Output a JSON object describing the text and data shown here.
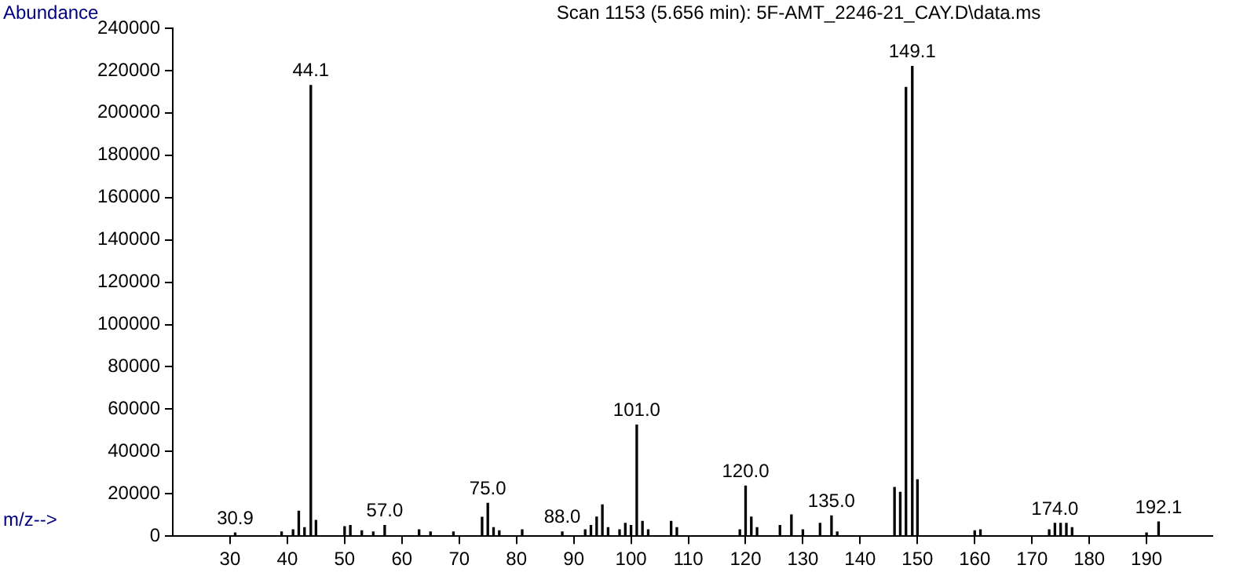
{
  "chart_data": {
    "type": "bar",
    "title": "Scan 1153 (5.656 min): 5F-AMT_2246-21_CAY.D\\data.ms",
    "xlabel": "m/z-->",
    "ylabel": "Abundance",
    "x": [
      30.9,
      39,
      41,
      42,
      43,
      44.1,
      45,
      50,
      51,
      53,
      55,
      57,
      63,
      65,
      69,
      74,
      75,
      76,
      77,
      81,
      88,
      92,
      93,
      94,
      95,
      96,
      98,
      99,
      100,
      101,
      102,
      103,
      107,
      108,
      119,
      120,
      121,
      122,
      126,
      128,
      130,
      133,
      135,
      136,
      146,
      147,
      148,
      149.1,
      150,
      160,
      161,
      173,
      174,
      175,
      176,
      177,
      190,
      192.1
    ],
    "values": [
      1500,
      2000,
      3000,
      11800,
      4000,
      213000,
      7400,
      4500,
      5000,
      2500,
      2000,
      5000,
      3000,
      2000,
      2000,
      8900,
      15500,
      4000,
      2500,
      3000,
      2000,
      3000,
      5000,
      9000,
      14800,
      4000,
      3000,
      6000,
      5000,
      52500,
      7000,
      3000,
      7000,
      4000,
      3000,
      23700,
      9000,
      4000,
      5000,
      10000,
      3000,
      6000,
      9600,
      2000,
      23000,
      20700,
      212000,
      222000,
      26600,
      2500,
      3000,
      3000,
      6000,
      6000,
      6000,
      4000,
      1500,
      6700
    ],
    "annotations": [
      {
        "text": "30.9",
        "x": 30.9,
        "y": 1500
      },
      {
        "text": "44.1",
        "x": 44.1,
        "y": 213000
      },
      {
        "text": "57.0",
        "x": 57,
        "y": 5000
      },
      {
        "text": "75.0",
        "x": 75,
        "y": 15500
      },
      {
        "text": "88.0",
        "x": 88,
        "y": 2000
      },
      {
        "text": "101.0",
        "x": 101,
        "y": 52500
      },
      {
        "text": "120.0",
        "x": 120,
        "y": 23700
      },
      {
        "text": "135.0",
        "x": 135,
        "y": 9600
      },
      {
        "text": "149.1",
        "x": 149.1,
        "y": 222000
      },
      {
        "text": "174.0",
        "x": 174,
        "y": 6000
      },
      {
        "text": "192.1",
        "x": 192.1,
        "y": 6700
      }
    ],
    "color": "#000000",
    "xlim": [
      20,
      201.5
    ],
    "xticks": [
      30,
      40,
      50,
      60,
      70,
      80,
      90,
      100,
      110,
      120,
      130,
      140,
      150,
      160,
      170,
      180,
      190
    ],
    "ylim": [
      0,
      240000
    ],
    "yticks": [
      0,
      20000,
      40000,
      60000,
      80000,
      100000,
      120000,
      140000,
      160000,
      180000,
      200000,
      220000,
      240000
    ],
    "grid": false,
    "legend": false
  }
}
